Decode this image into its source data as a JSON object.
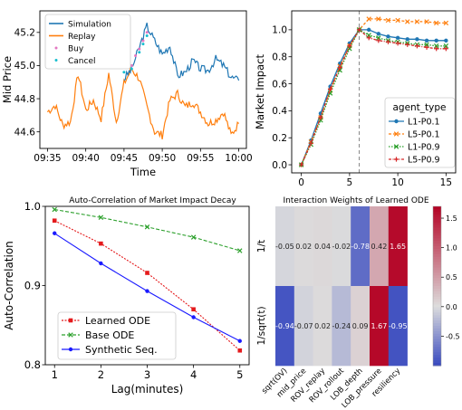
{
  "chart_data": [
    {
      "type": "line",
      "panel": "top-left",
      "xlabel": "Time",
      "ylabel": "Mid Price",
      "x_ticks": [
        "09:35",
        "09:40",
        "09:45",
        "09:50",
        "09:55",
        "10:00"
      ],
      "y_ticks": [
        "44.6",
        "44.8",
        "45.0",
        "45.2"
      ],
      "ylim": [
        44.5,
        45.33
      ],
      "legend": {
        "placement": "top-left",
        "entries": [
          "Simulation",
          "Replay",
          "Buy",
          "Cancel"
        ]
      },
      "colors": {
        "Simulation": "#1f77b4",
        "Replay": "#ff7f0e",
        "Buy": "#e377c2",
        "Cancel": "#17becf"
      },
      "series": [
        {
          "name": "Replay",
          "x": [
            "09:35",
            "09:36",
            "09:37",
            "09:38",
            "09:39",
            "09:40",
            "09:41",
            "09:42",
            "09:43",
            "09:44",
            "09:45",
            "09:46",
            "09:47",
            "09:48",
            "09:49",
            "09:50",
            "09:51",
            "09:52",
            "09:53",
            "09:54",
            "09:55",
            "09:56",
            "09:57",
            "09:58",
            "09:59",
            "10:00"
          ],
          "values": [
            44.72,
            44.76,
            44.64,
            44.66,
            44.95,
            44.73,
            44.79,
            44.68,
            44.95,
            44.66,
            44.89,
            44.98,
            44.92,
            44.75,
            44.6,
            44.58,
            44.79,
            44.83,
            44.75,
            44.78,
            44.72,
            44.65,
            44.67,
            44.72,
            44.58,
            44.65
          ]
        },
        {
          "name": "Simulation",
          "x": [
            "09:45",
            "09:46",
            "09:47",
            "09:48",
            "09:49",
            "09:50",
            "09:51",
            "09:52",
            "09:53",
            "09:54",
            "09:55",
            "09:56",
            "09:57",
            "09:58",
            "09:59",
            "10:00"
          ],
          "values": [
            44.92,
            44.98,
            45.11,
            45.24,
            45.15,
            45.07,
            45.12,
            44.94,
            44.96,
            45.03,
            44.98,
            44.97,
            45.04,
            45.0,
            44.93,
            44.91
          ]
        },
        {
          "name": "Buy",
          "x": [
            "09:46",
            "09:46:30",
            "09:47",
            "09:47:30",
            "09:48"
          ],
          "values": [
            45.0,
            45.06,
            45.1,
            45.15,
            45.2
          ]
        },
        {
          "name": "Cancel",
          "x": [
            "09:45",
            "09:46",
            "09:47",
            "09:47:30",
            "09:48"
          ],
          "values": [
            44.96,
            44.98,
            45.08,
            45.13,
            45.18
          ]
        }
      ]
    },
    {
      "type": "line",
      "panel": "top-right",
      "xlabel": "",
      "ylabel": "Market Impact",
      "x_ticks": [
        "0",
        "5",
        "10",
        "15"
      ],
      "y_ticks": [
        "0.0",
        "0.2",
        "0.4",
        "0.6",
        "0.8",
        "1.0"
      ],
      "xlim": [
        -1,
        16
      ],
      "ylim": [
        -0.06,
        1.14
      ],
      "vline_x": 6,
      "legend": {
        "placement": "center-right",
        "title": "agent_type",
        "entries": [
          "L1-P0.1",
          "L5-P0.1",
          "L1-P0.9",
          "L5-P0.9"
        ]
      },
      "x": [
        0,
        1,
        2,
        3,
        4,
        5,
        6,
        7,
        8,
        9,
        10,
        11,
        12,
        13,
        14,
        15
      ],
      "series": [
        {
          "name": "L1-P0.1",
          "color": "#1f77b4",
          "values": [
            0.0,
            0.18,
            0.38,
            0.58,
            0.75,
            0.9,
            1.0,
            1.0,
            0.97,
            0.95,
            0.94,
            0.93,
            0.93,
            0.92,
            0.92,
            0.92
          ]
        },
        {
          "name": "L5-P0.1",
          "color": "#ff7f0e",
          "values": [
            0.0,
            0.17,
            0.35,
            0.55,
            0.73,
            0.88,
            1.0,
            1.08,
            1.08,
            1.07,
            1.07,
            1.06,
            1.06,
            1.06,
            1.05,
            1.05
          ]
        },
        {
          "name": "L1-P0.9",
          "color": "#2ca02c",
          "values": [
            0.0,
            0.15,
            0.33,
            0.53,
            0.7,
            0.86,
            1.0,
            0.96,
            0.94,
            0.92,
            0.91,
            0.9,
            0.89,
            0.89,
            0.88,
            0.88
          ]
        },
        {
          "name": "L5-P0.9",
          "color": "#d62728",
          "values": [
            0.0,
            0.16,
            0.35,
            0.56,
            0.72,
            0.88,
            1.0,
            0.94,
            0.92,
            0.91,
            0.9,
            0.89,
            0.88,
            0.87,
            0.86,
            0.86
          ]
        }
      ]
    },
    {
      "type": "line",
      "panel": "bottom-left",
      "title": "Auto-Correlation of Market Impact Decay",
      "xlabel": "Lag(minutes)",
      "ylabel": "Auto-Correlation",
      "x": [
        1,
        2,
        3,
        4,
        5
      ],
      "x_ticks": [
        "1",
        "2",
        "3",
        "4",
        "5"
      ],
      "y_ticks": [
        "0.8",
        "0.9",
        "1.0"
      ],
      "xlim": [
        0.8,
        5.2
      ],
      "ylim": [
        0.8,
        1.0
      ],
      "legend": {
        "placement": "lower-left",
        "entries": [
          "Learned ODE",
          "Base ODE",
          "Synthetic Seq."
        ]
      },
      "series": [
        {
          "name": "Learned ODE",
          "color": "#e41a1c",
          "values": [
            0.982,
            0.953,
            0.916,
            0.87,
            0.818
          ]
        },
        {
          "name": "Base ODE",
          "color": "#2ca02c",
          "values": [
            0.996,
            0.986,
            0.974,
            0.961,
            0.944
          ]
        },
        {
          "name": "Synthetic Seq.",
          "color": "#1a1aff",
          "values": [
            0.966,
            0.928,
            0.893,
            0.86,
            0.83
          ]
        }
      ]
    },
    {
      "type": "heatmap",
      "panel": "bottom-right",
      "title": "Interaction Weights of Learned ODE",
      "rows": [
        "1/t",
        "1/sqrt(t)"
      ],
      "columns": [
        "sqrt(OV)",
        "mid_price",
        "ROV_replay",
        "ROV_rollout",
        "LOB_depth",
        "LOB_pressure",
        "resiliency"
      ],
      "values": [
        [
          -0.05,
          0.02,
          0.04,
          -0.02,
          -0.78,
          0.42,
          1.65
        ],
        [
          -0.94,
          -0.07,
          0.02,
          -0.24,
          0.09,
          1.67,
          -0.95
        ]
      ],
      "cell_labels": [
        [
          "-0.05",
          "0.02",
          "0.04",
          "-0.02",
          "-0.78",
          "0.42",
          "1.65"
        ],
        [
          "-0.94",
          "-0.07",
          "0.02",
          "-0.24",
          "0.09",
          "1.67",
          "-0.95"
        ]
      ],
      "colorbar_ticks": [
        "1.5",
        "1.0",
        "0.5",
        "0.0",
        "-0.5"
      ],
      "vrange": [
        -1.0,
        1.7
      ]
    }
  ]
}
